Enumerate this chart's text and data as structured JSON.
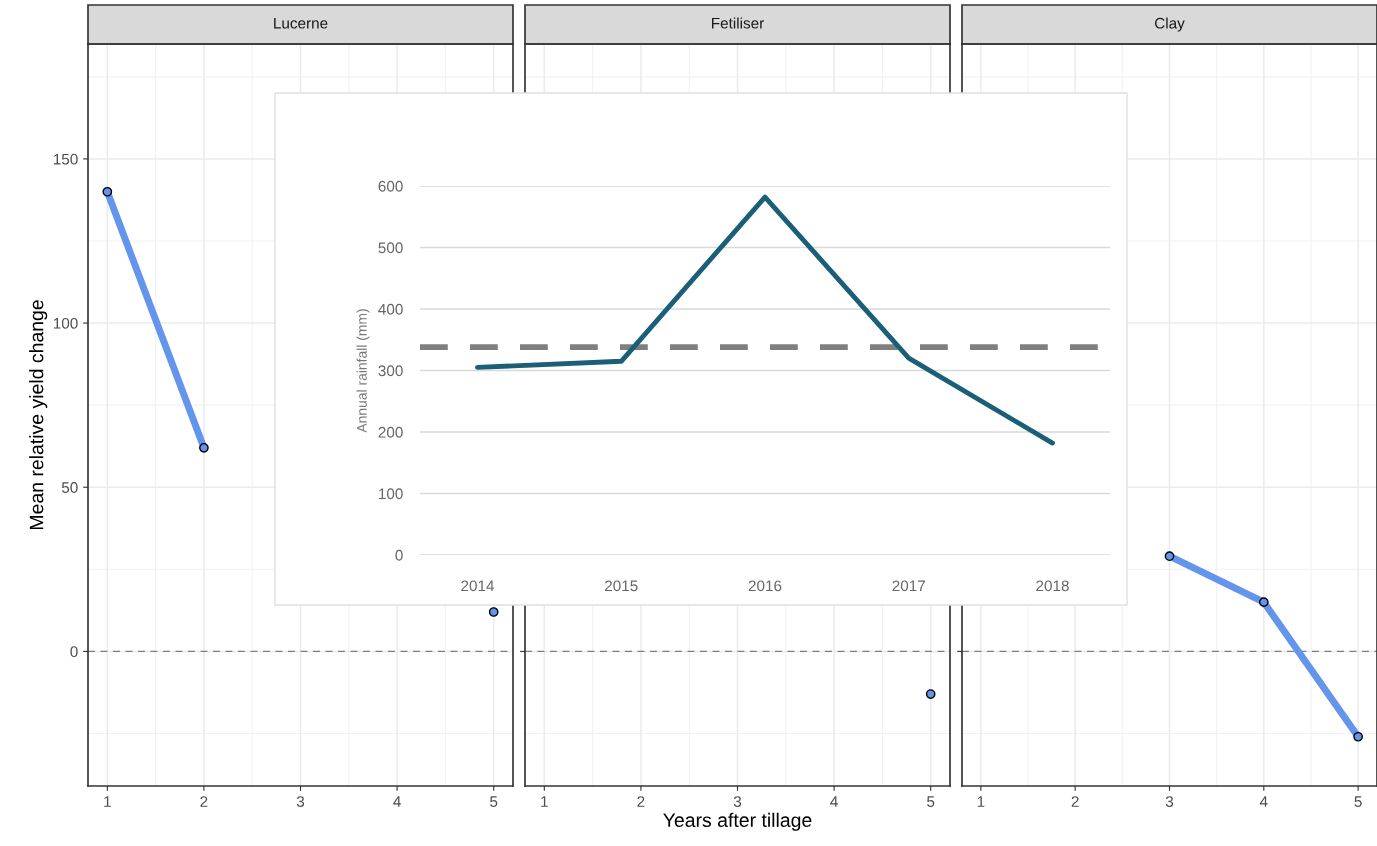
{
  "chart_data": [
    {
      "type": "line",
      "title": "Lucerne",
      "ylabel": "Mean relative yield change",
      "xlim": [
        0.8,
        5.2
      ],
      "xticks": [
        1,
        2,
        3,
        4,
        5
      ],
      "ylim": [
        -41,
        185
      ],
      "yticks": [
        0,
        50,
        100,
        150
      ],
      "grid": true,
      "marker": "circle",
      "ref_lines": [
        {
          "axis": "y",
          "value": 0,
          "line_style": "dashed",
          "color": "#808080"
        }
      ],
      "series": [
        {
          "color": "#6495ed",
          "x": [
            1,
            2
          ],
          "values": [
            140,
            62
          ]
        },
        {
          "color": "#6495ed",
          "x": [
            5
          ],
          "values": [
            12
          ]
        }
      ]
    },
    {
      "type": "line",
      "title": "Fetiliser",
      "xlabel": "Years after tillage",
      "xlim": [
        0.8,
        5.2
      ],
      "xticks": [
        1,
        2,
        3,
        4,
        5
      ],
      "ylim": [
        -41,
        185
      ],
      "tick_labels": "x",
      "grid": true,
      "marker": "circle",
      "ref_lines": [
        {
          "axis": "y",
          "value": 0,
          "line_style": "dashed",
          "color": "#808080"
        }
      ],
      "series": [
        {
          "color": "#6495ed",
          "x": [
            5
          ],
          "values": [
            -13
          ]
        }
      ]
    },
    {
      "type": "line",
      "title": "Clay",
      "xlim": [
        0.8,
        5.2
      ],
      "xticks": [
        1,
        2,
        3,
        4,
        5
      ],
      "ylim": [
        -41,
        185
      ],
      "tick_labels": "x",
      "grid": true,
      "marker": "circle",
      "ref_lines": [
        {
          "axis": "y",
          "value": 0,
          "line_style": "dashed",
          "color": "#808080"
        }
      ],
      "series": [
        {
          "color": "#6495ed",
          "x": [
            3,
            4,
            5
          ],
          "values": [
            29,
            15,
            -26
          ]
        }
      ]
    },
    {
      "type": "line",
      "ylabel": "Annual rainfall (mm)",
      "x": [
        2014,
        2015,
        2016,
        2017,
        2018
      ],
      "xlim": [
        2013.6,
        2018.4
      ],
      "xticks": [
        2014,
        2015,
        2016,
        2017,
        2018
      ],
      "ylim": [
        0,
        600
      ],
      "yticks": [
        0,
        100,
        200,
        300,
        400,
        500,
        600
      ],
      "grid": "y",
      "ref_lines": [
        {
          "axis": "y",
          "value": 338,
          "line_style": "dashed",
          "color": "#7f7f7f"
        }
      ],
      "series": [
        {
          "color": "#1b5e78",
          "values": [
            305,
            315,
            582,
            320,
            182
          ]
        }
      ]
    }
  ]
}
